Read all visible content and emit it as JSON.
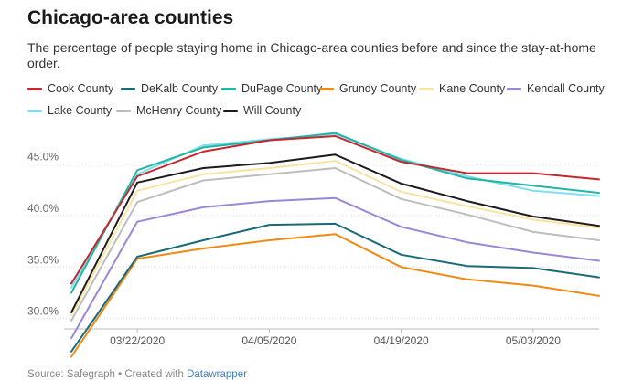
{
  "title": "Chicago-area counties",
  "subtitle": "The percentage of people staying home in Chicago-area counties before and since the stay-at-home order.",
  "footer": {
    "source": "Source: Safegraph • Created with ",
    "link": "Datawrapper"
  },
  "chart_data": {
    "type": "line",
    "title": "Chicago-area counties",
    "subtitle": "The percentage of people staying home in Chicago-area counties before and since the stay-at-home order.",
    "x": [
      "2020-03-15",
      "2020-03-22",
      "2020-03-29",
      "2020-04-05",
      "2020-04-12",
      "2020-04-19",
      "2020-04-26",
      "2020-05-03",
      "2020-05-10"
    ],
    "x_ticks": [
      "03/22/2020",
      "04/05/2020",
      "04/19/2020",
      "05/03/2020"
    ],
    "y_ticks": [
      "30.0%",
      "35.0%",
      "40.0%",
      "45.0%"
    ],
    "ylim": [
      29,
      48.5
    ],
    "grid": "horizontal",
    "legend_position": "top",
    "series": [
      {
        "name": "Cook County",
        "color": "#c6262e",
        "values": [
          33.4,
          43.8,
          46.2,
          47.3,
          47.7,
          45.2,
          44.1,
          44.1,
          43.5
        ]
      },
      {
        "name": "DeKalb County",
        "color": "#1a6a78",
        "values": [
          26.8,
          36.0,
          37.6,
          39.1,
          39.2,
          36.2,
          35.1,
          34.9,
          34.0
        ]
      },
      {
        "name": "DuPage County",
        "color": "#22b5a4",
        "values": [
          32.5,
          44.4,
          46.6,
          47.3,
          48.0,
          45.4,
          43.6,
          42.9,
          42.2
        ]
      },
      {
        "name": "Grundy County",
        "color": "#f08a12",
        "values": [
          26.3,
          35.8,
          36.8,
          37.6,
          38.2,
          35.0,
          33.8,
          33.2,
          32.2
        ]
      },
      {
        "name": "Kane County",
        "color": "#f7e4a1",
        "values": [
          30.3,
          42.4,
          44.0,
          44.6,
          45.3,
          42.3,
          40.9,
          39.6,
          38.8
        ]
      },
      {
        "name": "Kendall County",
        "color": "#9c86d6",
        "values": [
          28.1,
          39.4,
          40.8,
          41.4,
          41.7,
          38.9,
          37.4,
          36.4,
          35.6
        ]
      },
      {
        "name": "Lake County",
        "color": "#7fdff0",
        "values": [
          33.0,
          44.0,
          46.8,
          47.4,
          47.9,
          45.5,
          43.8,
          42.4,
          41.9
        ]
      },
      {
        "name": "McHenry County",
        "color": "#bdbdbd",
        "values": [
          29.8,
          41.3,
          43.4,
          44.0,
          44.6,
          41.6,
          40.1,
          38.4,
          37.6
        ]
      },
      {
        "name": "Will County",
        "color": "#1c1c1c",
        "values": [
          30.6,
          43.2,
          44.6,
          45.1,
          45.9,
          43.1,
          41.4,
          39.9,
          39.0
        ]
      }
    ]
  }
}
